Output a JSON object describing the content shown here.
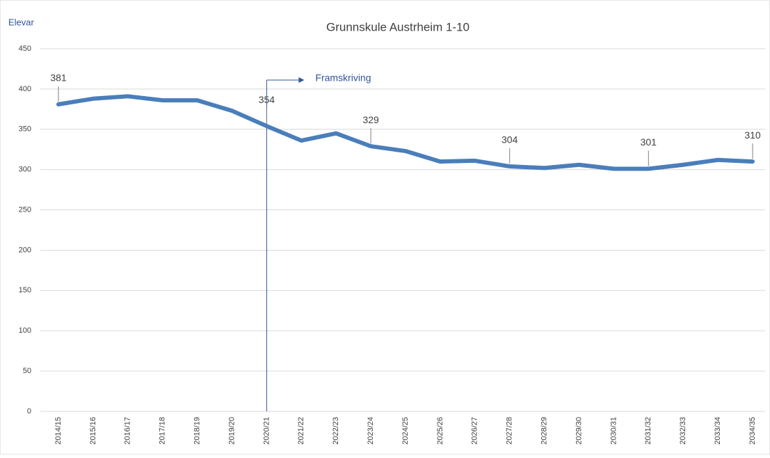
{
  "chart_data": {
    "type": "line",
    "title": "Grunnskule Austrheim 1-10",
    "y_label": "Elevar",
    "categories": [
      "2014/15",
      "2015/16",
      "2016/17",
      "2017/18",
      "2018/19",
      "2019/20",
      "2020/21",
      "2021/22",
      "2022/23",
      "2023/24",
      "2024/25",
      "2025/26",
      "2026/27",
      "2027/28",
      "2028/29",
      "2029/30",
      "2030/31",
      "2031/32",
      "2032/33",
      "2033/34",
      "2034/35"
    ],
    "series": [
      {
        "name": "Elevar",
        "color": "#4a7ebb",
        "values": [
          381,
          388,
          391,
          386,
          386,
          373,
          354,
          336,
          345,
          329,
          323,
          310,
          311,
          304,
          302,
          306,
          301,
          301,
          306,
          312,
          310
        ],
        "value_labels": [
          "381",
          null,
          null,
          null,
          null,
          null,
          "354",
          null,
          null,
          "329",
          null,
          null,
          null,
          "304",
          null,
          null,
          null,
          "301",
          null,
          null,
          "310"
        ]
      }
    ],
    "ylim": [
      0,
      450
    ],
    "yticks": [
      0,
      50,
      100,
      150,
      200,
      250,
      300,
      350,
      400,
      450
    ],
    "grid": true,
    "annotation": {
      "text": "Framskriving",
      "x": "2020/21",
      "color": "#2f5597"
    }
  }
}
